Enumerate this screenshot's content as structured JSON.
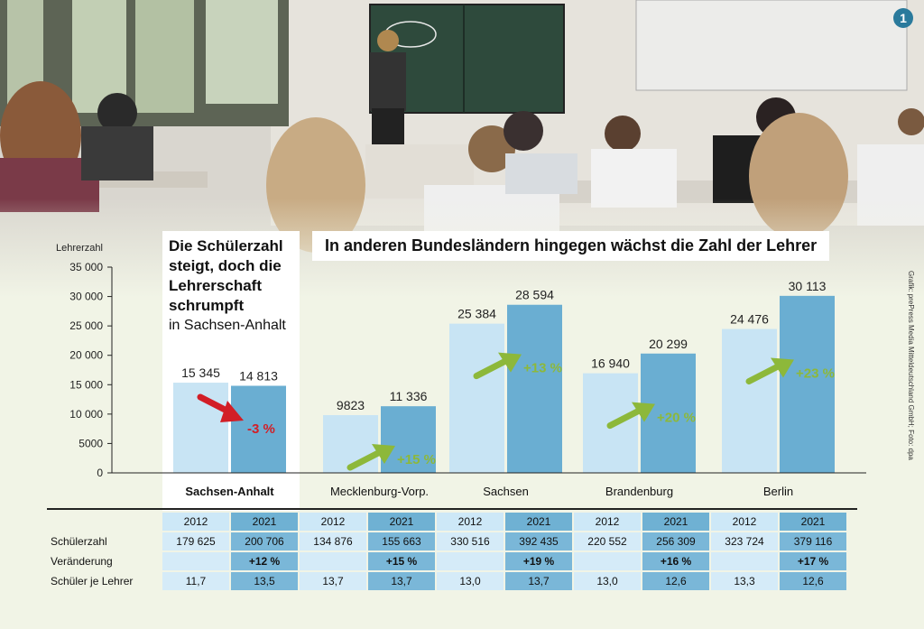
{
  "chart_data": {
    "type": "bar",
    "title": "In anderen Bundesländern hingegen wächst die Zahl der Lehrer",
    "panel_title": "Die Schülerzahl steigt, doch die Lehrerschaft schrumpft",
    "panel_subtitle": "in Sachsen-Anhalt",
    "ylabel": "Lehrerzahl",
    "ylim": [
      0,
      35000
    ],
    "yticks": [
      "0",
      "5000",
      "10 000",
      "15 000",
      "20 000",
      "25 000",
      "30 000",
      "35 000"
    ],
    "categories": [
      "Sachsen-Anhalt",
      "Mecklenburg-Vorp.",
      "Sachsen",
      "Brandenburg",
      "Berlin"
    ],
    "series": [
      {
        "name": "2012",
        "values": [
          15345,
          9823,
          25384,
          16940,
          24476
        ],
        "labels": [
          "15 345",
          "9823",
          "25 384",
          "16 940",
          "24 476"
        ]
      },
      {
        "name": "2021",
        "values": [
          14813,
          11336,
          28594,
          20299,
          30113
        ],
        "labels": [
          "14 813",
          "11 336",
          "28 594",
          "20 299",
          "30 113"
        ]
      }
    ],
    "changes": [
      "-3 %",
      "+15 %",
      "+13 %",
      "+20 %",
      "+23 %"
    ],
    "colors": {
      "bar2012": "#c8e4f4",
      "bar2021": "#6aaed2",
      "up": "#8db83a",
      "down": "#d21e26"
    }
  },
  "table": {
    "years": [
      "2012",
      "2021"
    ],
    "rows": [
      {
        "label": "Schülerzahl",
        "cells": [
          "179 625",
          "200 706",
          "134 876",
          "155 663",
          "330 516",
          "392 435",
          "220 552",
          "256 309",
          "323 724",
          "379 116"
        ]
      },
      {
        "label": "Veränderung",
        "cells": [
          "",
          "+12 %",
          "",
          "+15 %",
          "",
          "+19 %",
          "",
          "+16 %",
          "",
          "+17 %"
        ]
      },
      {
        "label": "Schüler je Lehrer",
        "cells": [
          "11,7",
          "13,5",
          "13,7",
          "13,7",
          "13,0",
          "13,7",
          "13,0",
          "12,6",
          "13,3",
          "12,6"
        ]
      }
    ]
  },
  "credit": "Grafik: prePress Media Mitteldeutschland GmbH; Foto: dpa",
  "page_badge": "1"
}
